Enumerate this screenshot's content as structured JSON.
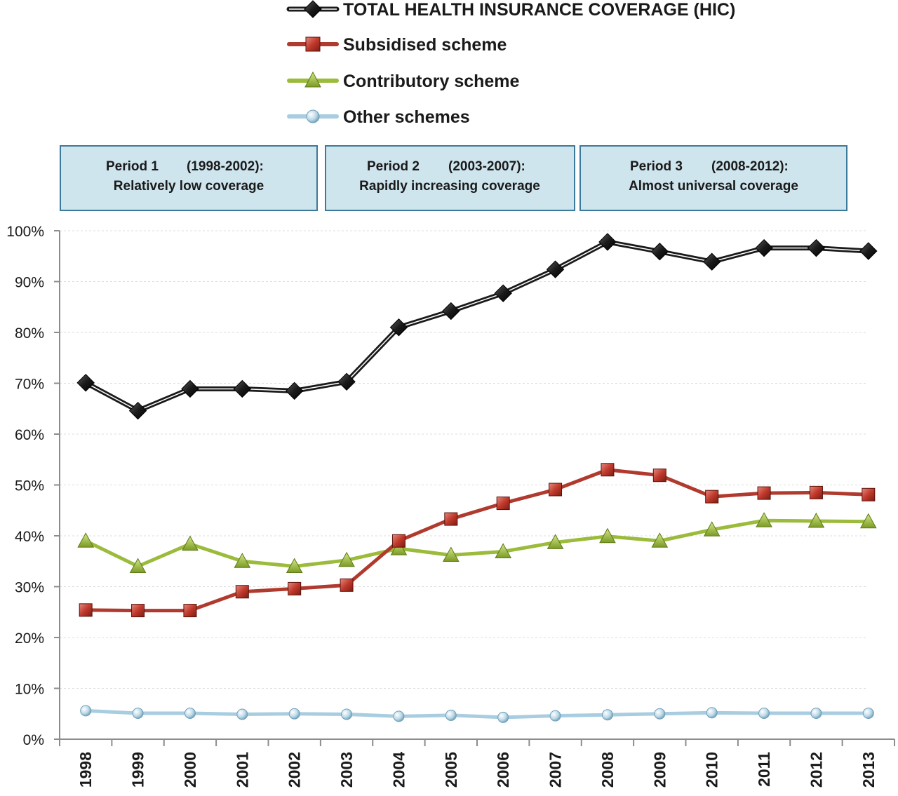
{
  "chart_data": {
    "type": "line",
    "categories": [
      "1998",
      "1999",
      "2000",
      "2001",
      "2002",
      "2003",
      "2004",
      "2005",
      "2006",
      "2007",
      "2008",
      "2009",
      "2010",
      "2011",
      "2012",
      "2013"
    ],
    "ylim": [
      0,
      100
    ],
    "yticks": [
      "0%",
      "10%",
      "20%",
      "30%",
      "40%",
      "50%",
      "60%",
      "70%",
      "80%",
      "90%",
      "100%"
    ],
    "grid": true,
    "legend_position": "top-center",
    "series": [
      {
        "name": "TOTAL HEALTH INSURANCE COVERAGE (HIC)",
        "marker": "diamond",
        "color": "#1a1a1a",
        "values": [
          70.1,
          64.6,
          68.9,
          68.9,
          68.5,
          70.3,
          81.0,
          84.2,
          87.7,
          92.4,
          97.8,
          95.9,
          93.9,
          96.6,
          96.6,
          96.0
        ]
      },
      {
        "name": "Subsidised scheme",
        "marker": "square",
        "color": "#b03a2e",
        "values": [
          25.4,
          25.3,
          25.3,
          29.0,
          29.6,
          30.3,
          39.0,
          43.3,
          46.4,
          49.1,
          53.0,
          51.9,
          47.7,
          48.4,
          48.5,
          48.1
        ]
      },
      {
        "name": "Contributory scheme",
        "marker": "triangle",
        "color": "#9bbb3b",
        "values": [
          39.0,
          34.0,
          38.4,
          35.0,
          34.0,
          35.2,
          37.5,
          36.2,
          36.9,
          38.7,
          39.9,
          39.0,
          41.2,
          43.0,
          42.9,
          42.8
        ]
      },
      {
        "name": "Other schemes",
        "marker": "circle",
        "color": "#a9cde0",
        "values": [
          5.6,
          5.1,
          5.1,
          4.9,
          5.0,
          4.9,
          4.5,
          4.7,
          4.3,
          4.6,
          4.8,
          5.0,
          5.2,
          5.1,
          5.1,
          5.1
        ]
      }
    ],
    "periods": [
      {
        "label": "Period 1",
        "years": "(1998-2002):",
        "description": "Relatively low coverage"
      },
      {
        "label": "Period 2",
        "years": "(2003-2007):",
        "description": "Rapidly increasing coverage"
      },
      {
        "label": "Period 3",
        "years": "(2008-2012):",
        "description": "Almost universal coverage"
      }
    ]
  },
  "colors": {
    "period_box_fill": "#cfe5ee",
    "period_box_stroke": "#3b7a9a",
    "axis": "#8c8c8c",
    "grid": "#dcdcdc"
  }
}
